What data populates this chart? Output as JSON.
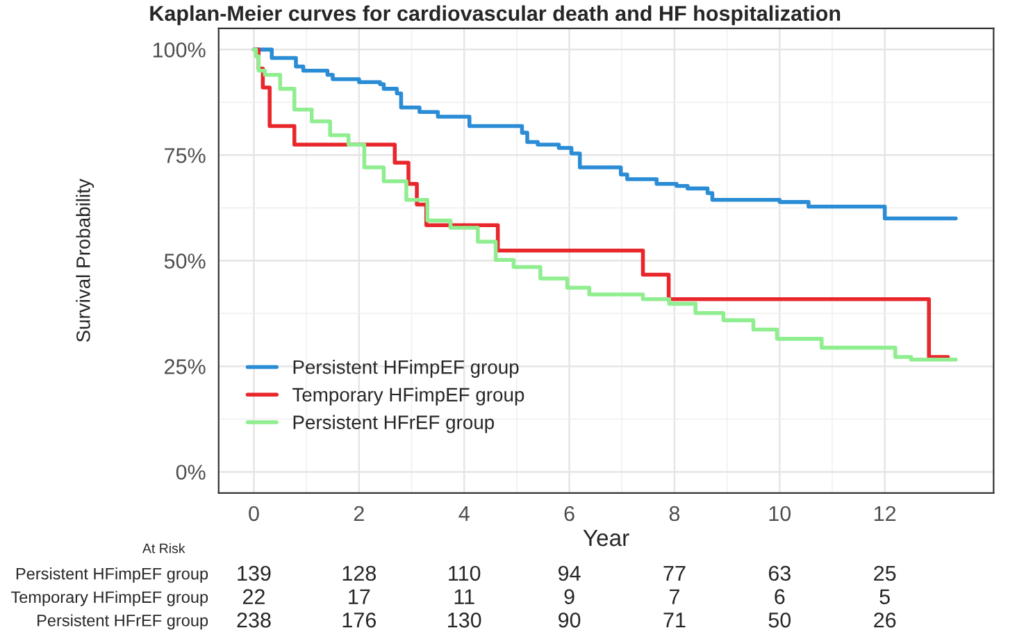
{
  "chart_data": {
    "type": "step",
    "title": "Kaplan-Meier curves for cardiovascular death and HF hospitalization",
    "xlabel": "Year",
    "ylabel": "Survival Probability",
    "xlim": [
      -0.67,
      14.07
    ],
    "xticks": [
      0,
      2,
      4,
      6,
      8,
      10,
      12
    ],
    "ylim": [
      -5,
      105
    ],
    "yticks": [
      {
        "value": 0,
        "label": "0%"
      },
      {
        "value": 25,
        "label": "25%"
      },
      {
        "value": 50,
        "label": "50%"
      },
      {
        "value": 75,
        "label": "75%"
      },
      {
        "value": 100,
        "label": "100%"
      }
    ],
    "grid": true,
    "legend": "bottom left",
    "line_style": "solid",
    "series": [
      {
        "name": "Persistent HFimpEF group",
        "color": "#2b8cd6",
        "x": [
          0,
          0.34,
          0.8,
          0.94,
          1.4,
          1.5,
          2.0,
          2.4,
          2.47,
          2.72,
          2.8,
          3.15,
          3.5,
          4.1,
          5.1,
          5.2,
          5.4,
          5.8,
          6.04,
          6.2,
          6.98,
          7.1,
          7.66,
          8.04,
          8.25,
          8.63,
          8.72,
          10.0,
          10.55,
          12.0,
          13.35
        ],
        "values": [
          100,
          98,
          96,
          95,
          94,
          93,
          92.3,
          91.8,
          90.7,
          89.6,
          86.3,
          85.2,
          84.1,
          81.9,
          80.3,
          78.1,
          77.5,
          76.7,
          75.4,
          72.1,
          70.4,
          69.3,
          68.2,
          67.7,
          67.1,
          66,
          64.4,
          63.9,
          62.8,
          60,
          60
        ]
      },
      {
        "name": "Temporary HFimpEF group",
        "color": "#e8262b",
        "x": [
          0,
          0.09,
          0.17,
          0.3,
          0.77,
          2.68,
          2.94,
          3.1,
          3.28,
          4.64,
          7.4,
          7.89,
          12.84,
          13.2
        ],
        "values": [
          100,
          95.5,
          91,
          81.9,
          77.5,
          73.2,
          68.2,
          63.3,
          58.4,
          52.4,
          46.7,
          40.9,
          27.2,
          27.2
        ]
      },
      {
        "name": "Persistent HFrEF group",
        "color": "#90ee90",
        "x": [
          0,
          0.04,
          0.09,
          0.21,
          0.5,
          0.77,
          1.1,
          1.45,
          1.8,
          2.1,
          2.47,
          2.9,
          3.3,
          3.74,
          4.26,
          4.6,
          4.94,
          5.45,
          5.96,
          6.38,
          7.4,
          7.9,
          8.4,
          8.93,
          9.5,
          9.95,
          10.8,
          12.2,
          12.5,
          13.35
        ],
        "values": [
          100,
          98.4,
          95,
          94,
          90.7,
          85.8,
          83,
          79.7,
          77.5,
          72.1,
          68.8,
          64.4,
          59.5,
          57.8,
          54.5,
          50.2,
          48.5,
          45.8,
          43.6,
          42,
          40.9,
          39.8,
          37.6,
          35.9,
          33.7,
          31.5,
          29.4,
          27.2,
          26.6,
          26.6
        ]
      }
    ],
    "annotations": [
      "At Risk",
      "Persistent HFimpEF group",
      "139",
      "128",
      "110",
      "94",
      "77",
      "63",
      "25",
      "Temporary HFimpEF group",
      "22",
      "17",
      "11",
      "9",
      "7",
      "6",
      "5",
      "Persistent HFrEF group",
      "238",
      "176",
      "130",
      "90",
      "71",
      "50",
      "26"
    ]
  }
}
